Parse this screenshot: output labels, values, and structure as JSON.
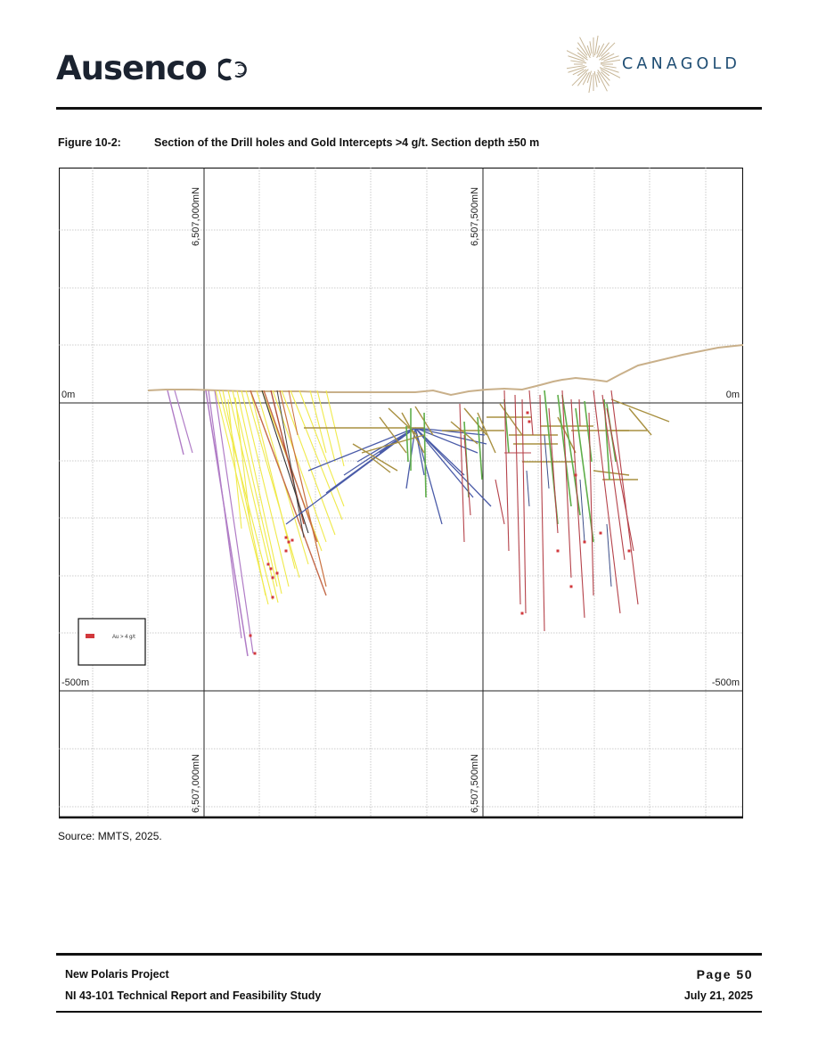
{
  "header": {
    "left_logo": "Ausenco",
    "right_logo": "CANAGOLD"
  },
  "figure": {
    "number": "Figure 10-2:",
    "title": "Section of the Drill holes and Gold Intercepts >4 g/t. Section depth ±50 m",
    "northing_labels": [
      "6,507,000mN",
      "6,507,500mN"
    ],
    "elevation_labels": {
      "top_left": "0m",
      "top_right": "0m",
      "bottom_left": "-500m",
      "bottom_right": "-500m"
    },
    "legend_label": "Au > 4 g/t",
    "colors": {
      "legend_swatch": "#d2383c",
      "topography": "#c9b08a",
      "grid": "#bdbdbd"
    }
  },
  "source": "Source: MMTS, 2025.",
  "footer": {
    "project": "New Polaris Project",
    "report": "NI 43-101 Technical Report and Feasibility Study",
    "page": "Page 50",
    "date": "July 21, 2025"
  }
}
